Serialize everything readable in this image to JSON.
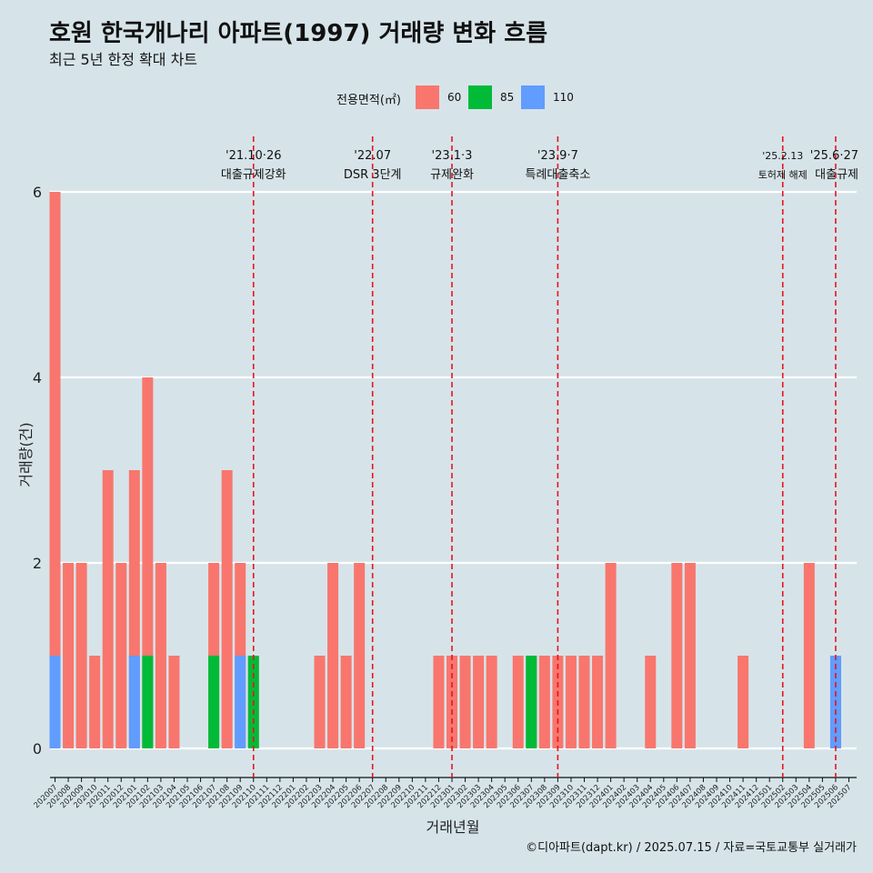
{
  "header": {
    "title": "호원 한국개나리 아파트(1997) 거래량 변화 흐름",
    "subtitle": "최근 5년 한정 확대 차트"
  },
  "legend": {
    "title": "전용면적(㎡)",
    "items": [
      {
        "label": "60",
        "color": "#f8766d"
      },
      {
        "label": "85",
        "color": "#00ba38"
      },
      {
        "label": "110",
        "color": "#619cff"
      }
    ]
  },
  "caption": "©디아파트(dapt.kr) / 2025.07.15 / 자료=국토교통부 실거래가",
  "chart_data": {
    "type": "bar",
    "stacking": "overlap",
    "xlabel": "거래년월",
    "ylabel": "거래량(건)",
    "ylim": [
      0,
      6
    ],
    "yticks": [
      0,
      2,
      4,
      6
    ],
    "grid": true,
    "legend_position": "top",
    "categories": [
      "202007",
      "202008",
      "202009",
      "202010",
      "202011",
      "202012",
      "202101",
      "202102",
      "202103",
      "202104",
      "202105",
      "202106",
      "202107",
      "202108",
      "202109",
      "202110",
      "202111",
      "202112",
      "202201",
      "202202",
      "202203",
      "202204",
      "202205",
      "202206",
      "202207",
      "202208",
      "202209",
      "202210",
      "202211",
      "202212",
      "202301",
      "202302",
      "202303",
      "202304",
      "202305",
      "202306",
      "202307",
      "202308",
      "202309",
      "202310",
      "202311",
      "202312",
      "202401",
      "202402",
      "202403",
      "202404",
      "202405",
      "202406",
      "202407",
      "202408",
      "202409",
      "202410",
      "202411",
      "202412",
      "202501",
      "202502",
      "202503",
      "202504",
      "202505",
      "202506",
      "202507"
    ],
    "series": [
      {
        "name": "60",
        "color": "#f8766d",
        "values": [
          6,
          2,
          2,
          1,
          3,
          2,
          3,
          4,
          2,
          1,
          0,
          0,
          2,
          3,
          2,
          1,
          0,
          0,
          0,
          0,
          1,
          2,
          1,
          2,
          0,
          0,
          0,
          0,
          0,
          1,
          1,
          1,
          1,
          1,
          0,
          1,
          1,
          1,
          1,
          1,
          1,
          1,
          2,
          0,
          0,
          1,
          0,
          2,
          2,
          0,
          0,
          0,
          1,
          0,
          0,
          0,
          0,
          2,
          0,
          1,
          0
        ]
      },
      {
        "name": "85",
        "color": "#00ba38",
        "values": [
          0,
          0,
          0,
          0,
          0,
          0,
          0,
          1,
          0,
          0,
          0,
          0,
          1,
          0,
          0,
          1,
          0,
          0,
          0,
          0,
          0,
          0,
          0,
          0,
          0,
          0,
          0,
          0,
          0,
          0,
          0,
          0,
          0,
          0,
          0,
          0,
          1,
          0,
          0,
          0,
          0,
          0,
          0,
          0,
          0,
          0,
          0,
          0,
          0,
          0,
          0,
          0,
          0,
          0,
          0,
          0,
          0,
          0,
          0,
          0,
          0
        ]
      },
      {
        "name": "110",
        "color": "#619cff",
        "values": [
          1,
          0,
          0,
          0,
          0,
          0,
          1,
          0,
          0,
          0,
          0,
          0,
          0,
          0,
          1,
          0,
          0,
          0,
          0,
          0,
          0,
          0,
          0,
          0,
          0,
          0,
          0,
          0,
          0,
          0,
          0,
          0,
          0,
          0,
          0,
          0,
          0,
          0,
          0,
          0,
          0,
          0,
          0,
          0,
          0,
          0,
          0,
          0,
          0,
          0,
          0,
          0,
          0,
          0,
          0,
          0,
          0,
          0,
          0,
          1,
          0
        ]
      }
    ],
    "annotations": [
      {
        "x": "202110",
        "date": "'21.10·26",
        "label": "대출규제강화"
      },
      {
        "x": "202207",
        "date": "'22.07",
        "label": "DSR 3단계"
      },
      {
        "x": "202301",
        "date": "'23.1·3",
        "label": "규제완화"
      },
      {
        "x": "202309",
        "date": "'23.9·7",
        "label": "특례대출축소"
      },
      {
        "x": "202502",
        "date": "'25.2.13",
        "label": "토허제 해제"
      },
      {
        "x": "202506",
        "date": "'25.6·27",
        "label": "대출규제"
      }
    ]
  }
}
